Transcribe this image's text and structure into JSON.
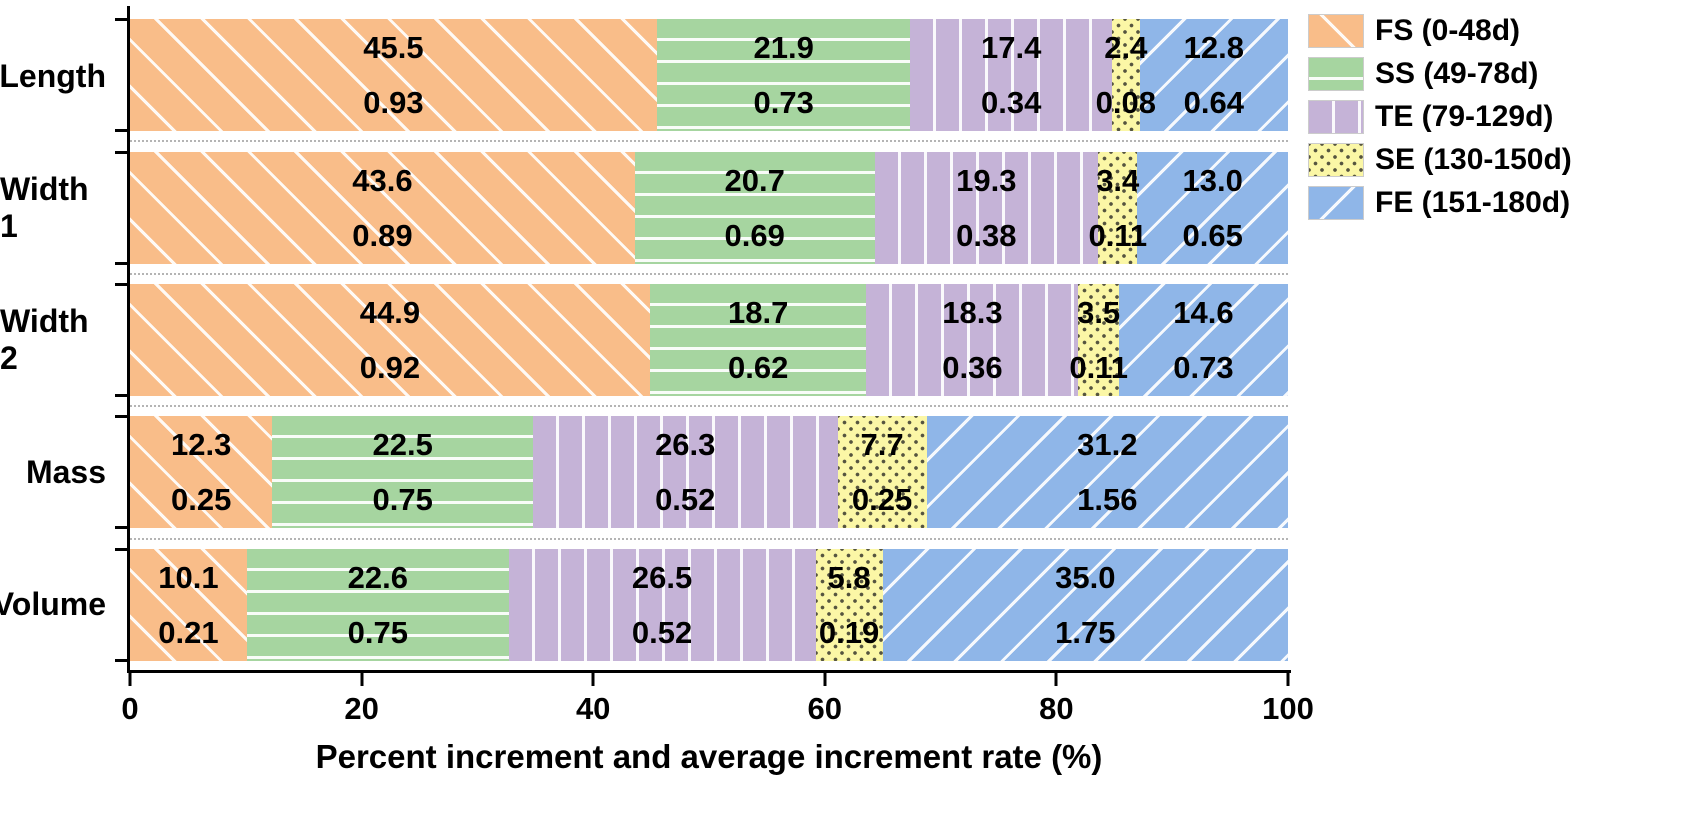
{
  "chart_data": {
    "type": "bar",
    "orientation": "horizontal",
    "stacked": true,
    "title": "",
    "xlabel": "Percent increment and average increment rate (%)",
    "xlim": [
      0,
      100
    ],
    "xticks": [
      "0",
      "20",
      "40",
      "60",
      "80",
      "100"
    ],
    "grid": "dotted horizontal separators between bars",
    "legend_position": "outside upper right",
    "value_labels": "each segment shows percent increment (top) and average increment rate (bottom)",
    "categories": [
      "Length",
      "Width 1",
      "Width 2",
      "Mass",
      "Volume"
    ],
    "series": [
      {
        "name": "FS (0-48d)",
        "color": "#F9BD89",
        "hatch": "forward-diagonal",
        "percent": [
          "45.5",
          "43.6",
          "44.9",
          "12.3",
          "10.1"
        ],
        "rate": [
          "0.93",
          "0.89",
          "0.92",
          "0.25",
          "0.21"
        ]
      },
      {
        "name": "SS (49-78d)",
        "color": "#A6D5A0",
        "hatch": "horizontal-lines",
        "percent": [
          "21.9",
          "20.7",
          "18.7",
          "22.5",
          "22.6"
        ],
        "rate": [
          "0.73",
          "0.69",
          "0.62",
          "0.75",
          "0.75"
        ]
      },
      {
        "name": "TE (79-129d)",
        "color": "#C5B3D7",
        "hatch": "vertical-lines",
        "percent": [
          "17.4",
          "19.3",
          "18.3",
          "26.3",
          "26.5"
        ],
        "rate": [
          "0.34",
          "0.38",
          "0.36",
          "0.52",
          "0.52"
        ]
      },
      {
        "name": "SE (130-150d)",
        "color": "#FBF7A6",
        "hatch": "dots",
        "percent": [
          "2.4",
          "3.4",
          "3.5",
          "7.7",
          "5.8"
        ],
        "rate": [
          "0.08",
          "0.11",
          "0.11",
          "0.25",
          "0.19"
        ]
      },
      {
        "name": "FE (151-180d)",
        "color": "#8FB6E8",
        "hatch": "back-diagonal",
        "percent": [
          "12.8",
          "13.0",
          "14.6",
          "31.2",
          "35.0"
        ],
        "rate": [
          "0.64",
          "0.65",
          "0.73",
          "1.56",
          "1.75"
        ]
      }
    ]
  }
}
